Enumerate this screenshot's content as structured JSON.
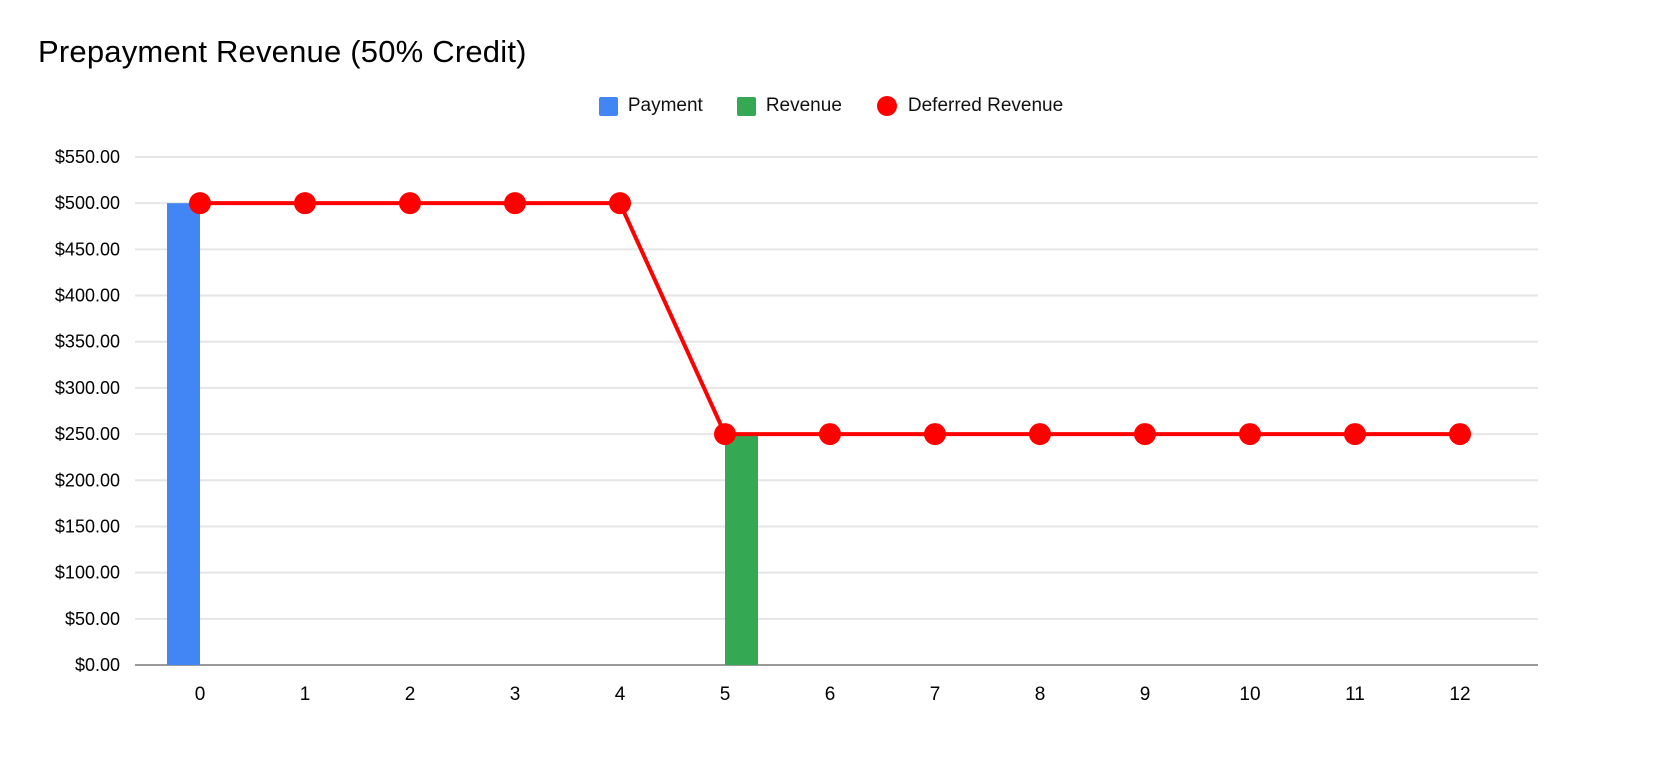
{
  "chart": {
    "title": "Prepayment Revenue (50% Credit)"
  },
  "legend": {
    "items": [
      {
        "label": "Payment",
        "marker": "square",
        "color": "#4285f4"
      },
      {
        "label": "Revenue",
        "marker": "square",
        "color": "#34a853"
      },
      {
        "label": "Deferred Revenue",
        "marker": "circle",
        "color": "#ff0000"
      }
    ]
  },
  "chart_data": {
    "type": "combo",
    "title": "Prepayment Revenue (50% Credit)",
    "xlabel": "",
    "ylabel": "",
    "categories": [
      "0",
      "1",
      "2",
      "3",
      "4",
      "5",
      "6",
      "7",
      "8",
      "9",
      "10",
      "11",
      "12"
    ],
    "series": [
      {
        "name": "Payment",
        "type": "bar",
        "color": "#4285f4",
        "values": [
          500,
          null,
          null,
          null,
          null,
          null,
          null,
          null,
          null,
          null,
          null,
          null,
          null
        ]
      },
      {
        "name": "Revenue",
        "type": "bar",
        "color": "#34a853",
        "values": [
          null,
          null,
          null,
          null,
          null,
          250,
          null,
          null,
          null,
          null,
          null,
          null,
          null
        ]
      },
      {
        "name": "Deferred Revenue",
        "type": "line",
        "color": "#ff0000",
        "values": [
          500,
          500,
          500,
          500,
          500,
          250,
          250,
          250,
          250,
          250,
          250,
          250,
          250
        ]
      }
    ],
    "ylim": [
      0,
      550
    ],
    "ytick_step": 50,
    "y_tick_labels": [
      "$0.00",
      "$50.00",
      "$100.00",
      "$150.00",
      "$200.00",
      "$250.00",
      "$300.00",
      "$350.00",
      "$400.00",
      "$450.00",
      "$500.00",
      "$550.00"
    ],
    "grid": true,
    "legend_position": "top"
  },
  "style": {
    "background": "#ffffff",
    "gridline_color": "#e6e6e6",
    "baseline_color": "#999999",
    "axis_text_color": "#000000",
    "title_color": "#000000",
    "legend_text_color": "#111111"
  }
}
